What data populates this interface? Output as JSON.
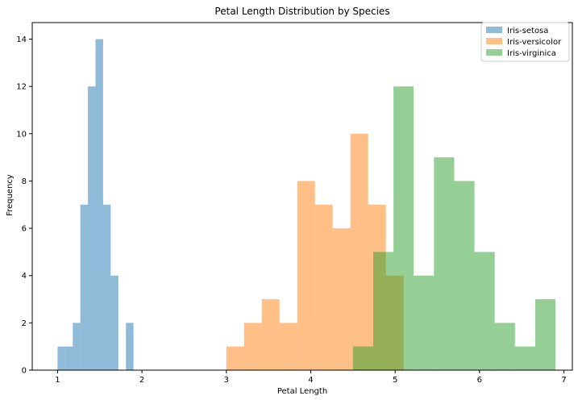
{
  "chart_data": {
    "type": "bar",
    "subtype": "overlapping-histogram",
    "title": "Petal Length Distribution by Species",
    "xlabel": "Petal Length",
    "ylabel": "Frequency",
    "xlim": [
      0.7,
      7.1
    ],
    "ylim": [
      0,
      14.7
    ],
    "xticks": [
      1,
      2,
      3,
      4,
      5,
      6,
      7
    ],
    "yticks": [
      0,
      2,
      4,
      6,
      8,
      10,
      12,
      14
    ],
    "grid": false,
    "legend_position": "top-right",
    "opacity": 0.5,
    "series": [
      {
        "name": "Iris-setosa",
        "color": "#1f77b4",
        "bins": [
          [
            1.0,
            1.09,
            1
          ],
          [
            1.09,
            1.18,
            1
          ],
          [
            1.18,
            1.27,
            2
          ],
          [
            1.27,
            1.36,
            7
          ],
          [
            1.36,
            1.45,
            12
          ],
          [
            1.45,
            1.54,
            14
          ],
          [
            1.54,
            1.63,
            7
          ],
          [
            1.63,
            1.72,
            4
          ],
          [
            1.72,
            1.81,
            0
          ],
          [
            1.81,
            1.9,
            2
          ]
        ]
      },
      {
        "name": "Iris-versicolor",
        "color": "#ff7f0e",
        "bins": [
          [
            3.0,
            3.21,
            1
          ],
          [
            3.21,
            3.42,
            2
          ],
          [
            3.42,
            3.63,
            3
          ],
          [
            3.63,
            3.84,
            2
          ],
          [
            3.84,
            4.05,
            8
          ],
          [
            4.05,
            4.26,
            7
          ],
          [
            4.26,
            4.47,
            6
          ],
          [
            4.47,
            4.68,
            10
          ],
          [
            4.68,
            4.89,
            7
          ],
          [
            4.89,
            5.1,
            4
          ]
        ]
      },
      {
        "name": "Iris-virginica",
        "color": "#2ca02c",
        "bins": [
          [
            4.5,
            4.74,
            1
          ],
          [
            4.74,
            4.98,
            5
          ],
          [
            4.98,
            5.22,
            12
          ],
          [
            5.22,
            5.46,
            4
          ],
          [
            5.46,
            5.7,
            9
          ],
          [
            5.7,
            5.94,
            8
          ],
          [
            5.94,
            6.18,
            5
          ],
          [
            6.18,
            6.42,
            2
          ],
          [
            6.42,
            6.66,
            1
          ],
          [
            6.66,
            6.9,
            3
          ]
        ]
      }
    ]
  }
}
